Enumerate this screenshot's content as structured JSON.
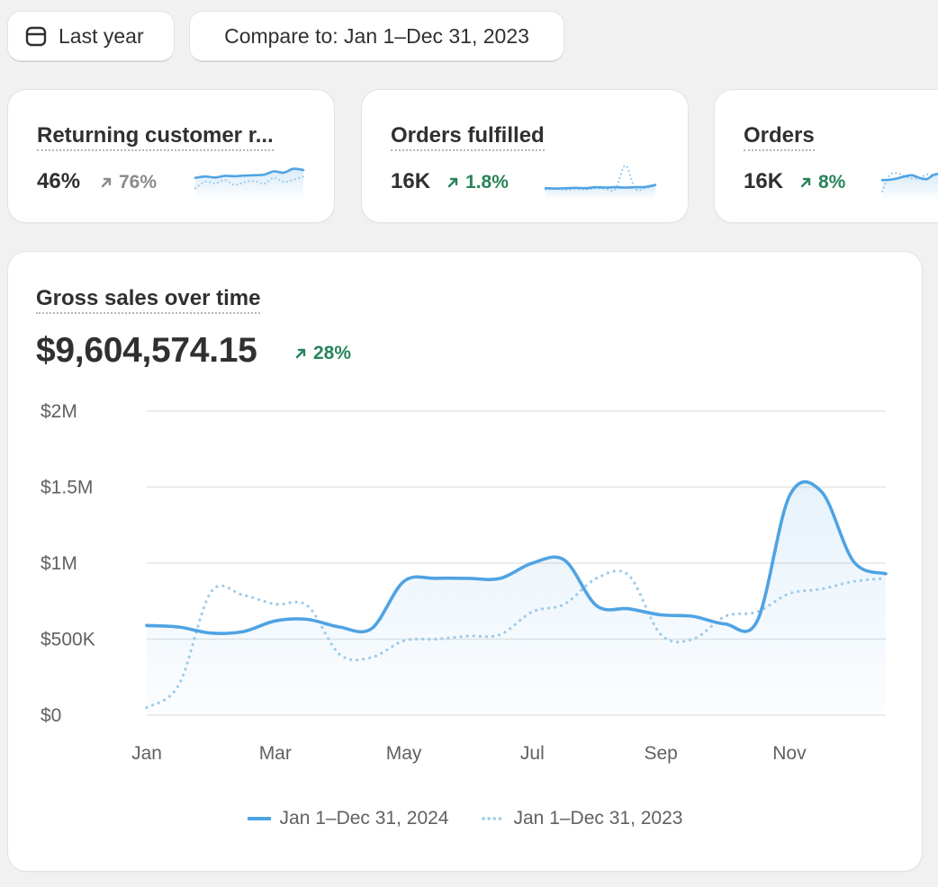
{
  "toolbar": {
    "period_label": "Last year",
    "compare_label": "Compare to: Jan 1–Dec 31, 2023"
  },
  "metrics": [
    {
      "title": "Returning customer r...",
      "value": "46%",
      "change": "76%",
      "change_direction": "neutral",
      "spark_current": [
        0.62,
        0.66,
        0.63,
        0.68,
        0.67,
        0.69,
        0.7,
        0.72,
        0.82,
        0.78,
        0.9,
        0.86
      ],
      "spark_previous": [
        0.3,
        0.5,
        0.45,
        0.55,
        0.4,
        0.48,
        0.52,
        0.44,
        0.62,
        0.5,
        0.56,
        0.66
      ]
    },
    {
      "title": "Orders fulfilled",
      "value": "16K",
      "change": "1.8%",
      "change_direction": "up",
      "spark_current": [
        0.3,
        0.29,
        0.3,
        0.31,
        0.3,
        0.33,
        0.32,
        0.33,
        0.32,
        0.33,
        0.34,
        0.4
      ],
      "spark_previous": [
        0.26,
        0.28,
        0.25,
        0.27,
        0.26,
        0.29,
        0.28,
        0.27,
        1.0,
        0.28,
        0.3,
        0.38
      ]
    },
    {
      "title": "Orders",
      "value": "16K",
      "change": "8%",
      "change_direction": "up",
      "spark_current": [
        0.55,
        0.56,
        0.6,
        0.66,
        0.7,
        0.62,
        0.58,
        0.72,
        0.75
      ],
      "spark_previous": [
        0.2,
        0.7,
        0.76,
        0.68,
        0.6,
        0.62,
        0.72,
        0.7,
        0.74
      ]
    }
  ],
  "colors": {
    "accent": "#4fa3e3",
    "compare": "#9fcbe9",
    "positive": "#29845a",
    "neutral": "#8a8a8a"
  },
  "chart_data": {
    "type": "line",
    "title": "Gross sales over time",
    "total": "$9,604,574.15",
    "change": "28%",
    "change_direction": "up",
    "x_tick_labels": [
      "Jan",
      "Mar",
      "May",
      "Jul",
      "Sep",
      "Nov"
    ],
    "y_tick_labels": [
      "$0",
      "$500K",
      "$1M",
      "$1.5M",
      "$2M"
    ],
    "y_tick_values": [
      0,
      500000,
      1000000,
      1500000,
      2000000
    ],
    "ylim": [
      0,
      2000000
    ],
    "x_range": [
      0,
      11.5
    ],
    "grid": true,
    "legend_position": "bottom-center",
    "series": [
      {
        "name": "Jan 1–Dec 31, 2024",
        "style": "solid",
        "x": [
          0,
          0.5,
          1,
          1.5,
          2,
          2.5,
          3,
          3.5,
          4,
          4.5,
          5,
          5.5,
          6,
          6.5,
          7,
          7.5,
          8,
          8.5,
          9,
          9.5,
          10,
          10.5,
          11,
          11.5
        ],
        "values": [
          590000,
          580000,
          540000,
          550000,
          620000,
          630000,
          580000,
          570000,
          880000,
          900000,
          900000,
          900000,
          1000000,
          1020000,
          720000,
          700000,
          660000,
          650000,
          600000,
          620000,
          1440000,
          1470000,
          1010000,
          930000
        ]
      },
      {
        "name": "Jan 1–Dec 31, 2023",
        "style": "dotted",
        "x": [
          0,
          0.5,
          1,
          1.5,
          2,
          2.5,
          3,
          3.5,
          4,
          4.5,
          5,
          5.5,
          6,
          6.5,
          7,
          7.5,
          8,
          8.5,
          9,
          9.5,
          10,
          10.5,
          11,
          11.5
        ],
        "values": [
          50000,
          200000,
          810000,
          790000,
          730000,
          720000,
          400000,
          380000,
          490000,
          500000,
          520000,
          530000,
          680000,
          730000,
          900000,
          920000,
          530000,
          500000,
          650000,
          680000,
          800000,
          830000,
          880000,
          900000
        ]
      }
    ]
  }
}
